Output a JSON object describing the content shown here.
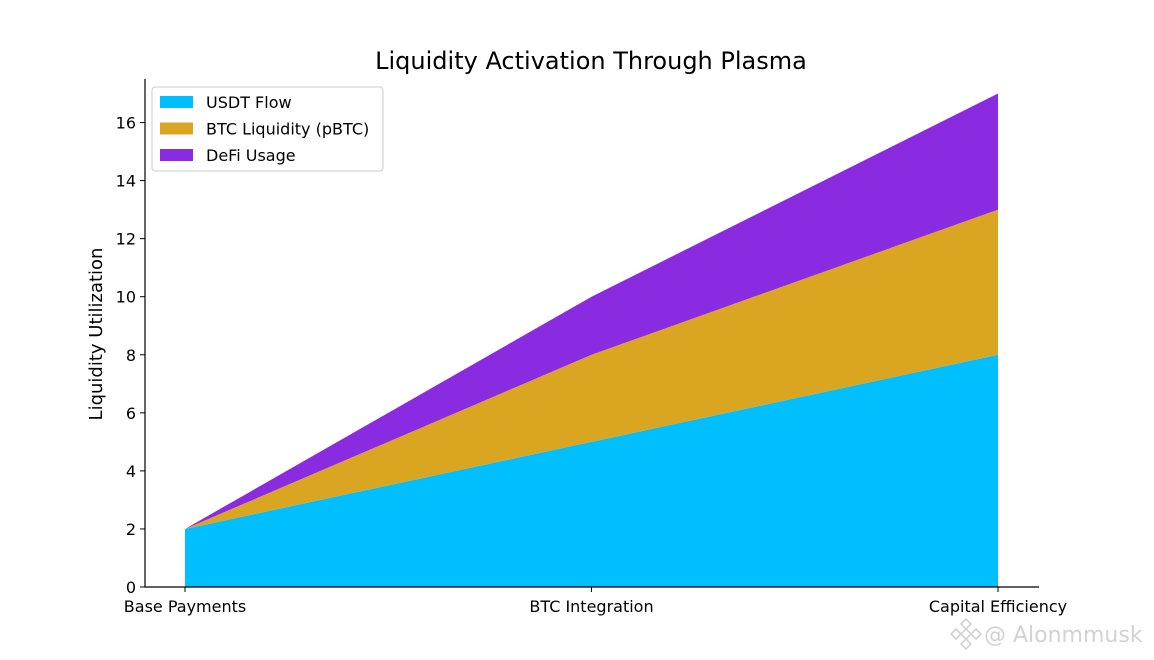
{
  "chart_data": {
    "type": "area",
    "stacked": true,
    "title": "Liquidity Activation Through Plasma",
    "xlabel": "",
    "ylabel": "Liquidity Utilization",
    "categories": [
      "Base Payments",
      "BTC Integration",
      "Capital Efficiency"
    ],
    "series": [
      {
        "name": "USDT Flow",
        "values": [
          2,
          5,
          8
        ],
        "color": "#00bfff"
      },
      {
        "name": "BTC Liquidity (pBTC)",
        "values": [
          0,
          3,
          5
        ],
        "color": "#daa520"
      },
      {
        "name": "DeFi Usage",
        "values": [
          0,
          2,
          4
        ],
        "color": "#8a2be2"
      }
    ],
    "ylim": [
      0,
      17.5
    ],
    "yticks": [
      0,
      2,
      4,
      6,
      8,
      10,
      12,
      14,
      16
    ],
    "legend_position": "top-left",
    "grid": false
  },
  "watermark": {
    "text": "@ Alonmmusk",
    "icon": "binance-logo-icon"
  }
}
